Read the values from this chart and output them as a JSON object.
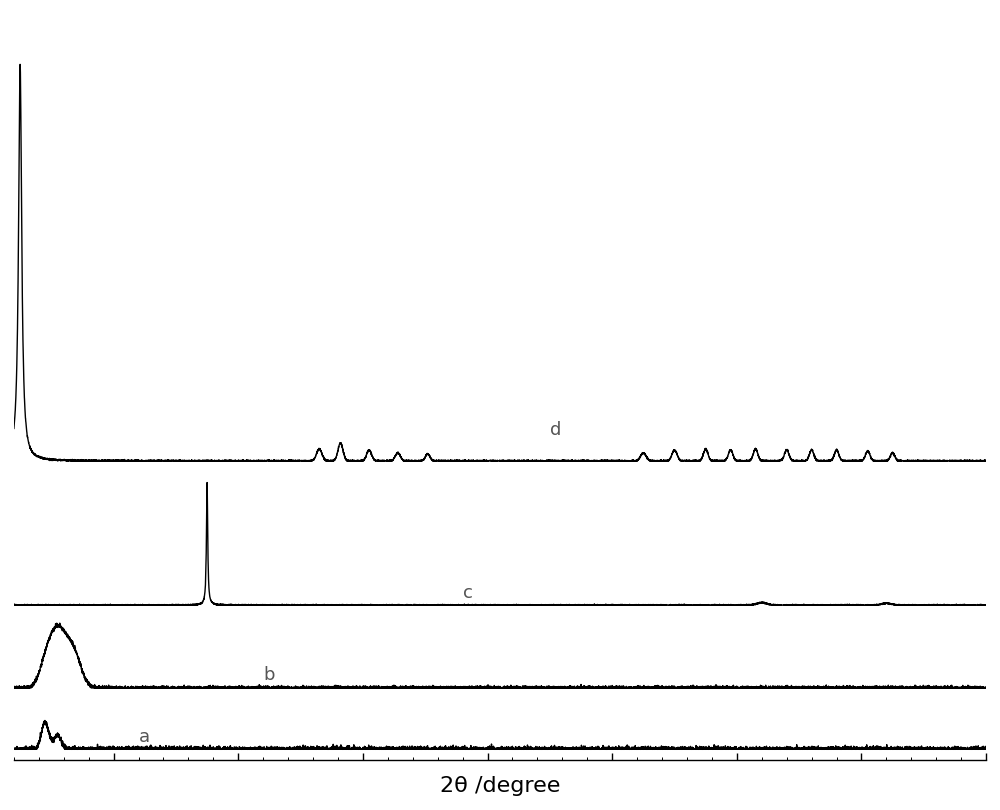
{
  "title": "",
  "xlabel": "2θ /degree",
  "xlabel_fontsize": 16,
  "background_color": "#ffffff",
  "line_color": "#000000",
  "linewidth": 1.0,
  "figsize": [
    10.0,
    8.1
  ],
  "dpi": 100,
  "labels": [
    "a",
    "b",
    "c",
    "d"
  ],
  "label_fontsize": 13,
  "label_color": "#555555"
}
